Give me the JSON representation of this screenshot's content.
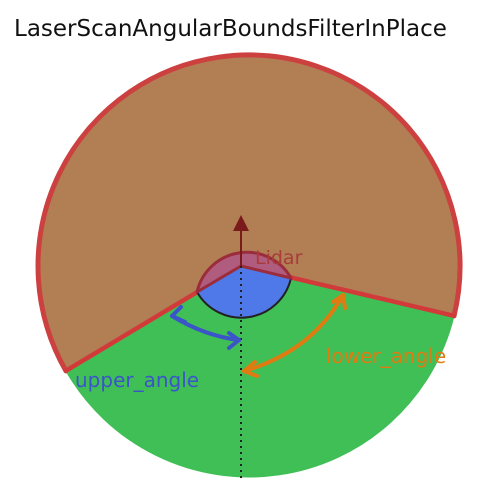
{
  "title": "LaserScanAngularBoundsFilterInPlace",
  "labels": {
    "lidar": "Lidar",
    "lower_angle": "lower_angle",
    "upper_angle": "upper_angle"
  },
  "colors": {
    "filtered_region_fill": "#b07a4f",
    "filtered_region_stroke": "#cc3a3a",
    "kept_region_fill": "#3fbf56",
    "lidar_fill": "#b05c7e",
    "lidar_stroke": "#9b2c3c",
    "inner_region_fill": "#4f78e8",
    "lower_angle_color": "#e07b12",
    "upper_angle_color": "#3b55c9",
    "lidar_label_color": "#a83c3c",
    "title_color": "#111111"
  }
}
